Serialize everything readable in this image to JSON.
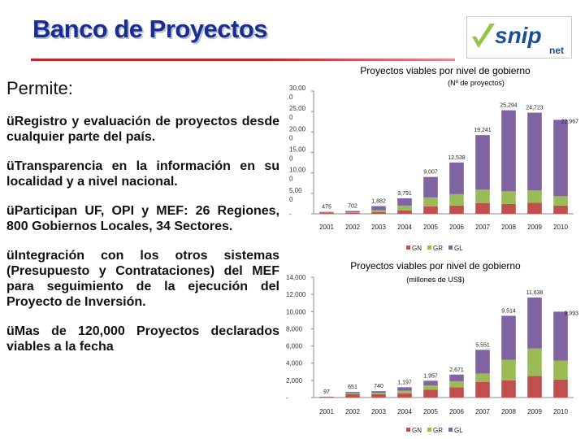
{
  "slide": {
    "title": "Banco de Proyectos",
    "logo_text": "snip",
    "logo_sub": "net",
    "intro": "Permite:",
    "bullets": [
      "Registro y evaluación de proyectos desde cualquier parte del país.",
      "Transparencia en la información en su localidad y a nivel nacional.",
      "Participan UF, OPI y MEF: 26 Regiones, 800 Gobiernos Locales, 34 Sectores.",
      "Integración con los otros sistemas (Presupuesto y Contrataciones) del MEF para seguimiento de la ejecución del Proyecto de Inversión.",
      "Mas de 120,000 Proyectos declarados viables a la fecha"
    ],
    "bullet_glyph": "ü"
  },
  "colors": {
    "title": "#1a2f8c",
    "accent_red": "#c0262d",
    "logo_green": "#8dc63f",
    "logo_blue": "#1a4f9c",
    "GN": "#c0504d",
    "GR": "#9bbb59",
    "GL": "#8064a2"
  },
  "chart_data": [
    {
      "type": "bar",
      "stacked": true,
      "title": "Proyectos viables por nivel de gobierno",
      "subtitle": "(Nº de proyectos)",
      "categories": [
        "2001",
        "2002",
        "2003",
        "2004",
        "2005",
        "2006",
        "2007",
        "2008",
        "2009",
        "2010"
      ],
      "ylim": [
        0,
        30000
      ],
      "y_ticks": [
        "-",
        "5,00\n0",
        "10,00\n0",
        "15,00\n0",
        "20,00\n0",
        "25,00\n0",
        "30,00\n0"
      ],
      "series": [
        {
          "name": "GN",
          "values": [
            200,
            250,
            450,
            800,
            1800,
            2000,
            2600,
            2400,
            2700,
            2000
          ]
        },
        {
          "name": "GR",
          "values": [
            75,
            150,
            450,
            1200,
            2200,
            2800,
            3300,
            3100,
            3000,
            2300
          ]
        },
        {
          "name": "GL",
          "values": [
            200,
            302,
            982,
            1791,
            5007,
            7738,
            13341,
            19794,
            19023,
            18667
          ]
        }
      ],
      "totals": [
        475,
        702,
        1882,
        3791,
        9007,
        12538,
        19241,
        25294,
        24723,
        22967
      ],
      "total_labels": [
        "475",
        "702",
        "1,882",
        "3,791",
        "9,007",
        "12,538",
        "19,241",
        "25,294",
        "24,723",
        "22,967"
      ],
      "legend": [
        "GN",
        "GR",
        "GL"
      ],
      "legend_position": "bottom"
    },
    {
      "type": "bar",
      "stacked": true,
      "title": "Proyectos viables por nivel de gobierno",
      "subtitle": "(millones de US$)",
      "categories": [
        "2001",
        "2002",
        "2003",
        "2004",
        "2005",
        "2006",
        "2007",
        "2008",
        "2009",
        "2010"
      ],
      "ylim": [
        0,
        14000
      ],
      "y_ticks": [
        "-",
        "2,000",
        "4,000",
        "6,000",
        "8,000",
        "10,000",
        "12,000",
        "14,000"
      ],
      "series": [
        {
          "name": "GN",
          "values": [
            60,
            400,
            400,
            500,
            900,
            1200,
            1800,
            2000,
            2500,
            2100
          ]
        },
        {
          "name": "GR",
          "values": [
            20,
            120,
            150,
            300,
            500,
            700,
            1000,
            2400,
            3200,
            2200
          ]
        },
        {
          "name": "GL",
          "values": [
            17,
            131,
            190,
            397,
            557,
            771,
            2751,
            5114,
            5938,
            5693
          ]
        }
      ],
      "totals": [
        97,
        651,
        740,
        1197,
        1957,
        2671,
        5551,
        9514,
        11638,
        9993
      ],
      "total_labels": [
        "97",
        "651",
        "740",
        "1,197",
        "1,957",
        "2,671",
        "5,551",
        "9,514",
        "11,638",
        "9,993"
      ],
      "legend": [
        "GN",
        "GR",
        "GL"
      ],
      "legend_position": "bottom"
    }
  ]
}
